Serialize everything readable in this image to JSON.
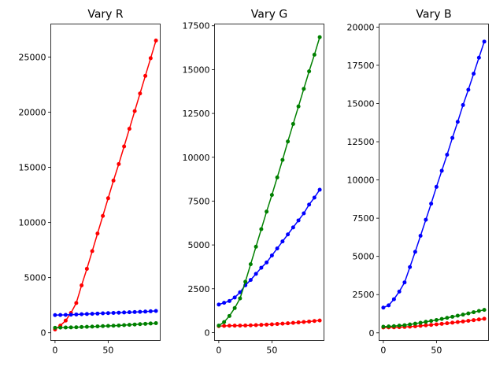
{
  "chart_data": [
    {
      "type": "line",
      "title": "Vary R",
      "xlabel": "",
      "ylabel": "",
      "xlim": [
        -4,
        99
      ],
      "ylim": [
        -700,
        28000
      ],
      "xticks": [
        0,
        50
      ],
      "xtick_labels": [
        "0",
        "50"
      ],
      "yticks": [
        0,
        5000,
        10000,
        15000,
        20000,
        25000
      ],
      "ytick_labels": [
        "0",
        "5000",
        "10000",
        "15000",
        "20000",
        "25000"
      ],
      "x": [
        0,
        5,
        10,
        15,
        20,
        25,
        30,
        35,
        40,
        45,
        50,
        55,
        60,
        65,
        70,
        75,
        80,
        85,
        90,
        95
      ],
      "series": [
        {
          "color": "#ff0000",
          "values": [
            300,
            650,
            1100,
            1800,
            2700,
            4300,
            5800,
            7400,
            9000,
            10600,
            12200,
            13800,
            15300,
            16900,
            18500,
            20100,
            21700,
            23300,
            24900,
            26500
          ]
        },
        {
          "color": "#0000ff",
          "values": [
            1600,
            1610,
            1620,
            1640,
            1660,
            1680,
            1700,
            1720,
            1740,
            1760,
            1780,
            1800,
            1820,
            1840,
            1860,
            1880,
            1900,
            1920,
            1950,
            1980
          ]
        },
        {
          "color": "#008000",
          "values": [
            450,
            470,
            480,
            490,
            500,
            520,
            540,
            560,
            580,
            600,
            620,
            640,
            660,
            690,
            720,
            750,
            780,
            810,
            840,
            870
          ]
        }
      ]
    },
    {
      "type": "line",
      "title": "Vary G",
      "xlabel": "",
      "ylabel": "",
      "xlim": [
        -4,
        99
      ],
      "ylim": [
        -450,
        17600
      ],
      "xticks": [
        0,
        50
      ],
      "xtick_labels": [
        "0",
        "50"
      ],
      "yticks": [
        0,
        2500,
        5000,
        7500,
        10000,
        12500,
        15000,
        17500
      ],
      "ytick_labels": [
        "0",
        "2500",
        "5000",
        "7500",
        "10000",
        "12500",
        "15000",
        "17500"
      ],
      "x": [
        0,
        5,
        10,
        15,
        20,
        25,
        30,
        35,
        40,
        45,
        50,
        55,
        60,
        65,
        70,
        75,
        80,
        85,
        90,
        95
      ],
      "series": [
        {
          "color": "#ff0000",
          "values": [
            370,
            380,
            390,
            395,
            400,
            405,
            415,
            425,
            440,
            455,
            470,
            490,
            510,
            530,
            555,
            580,
            605,
            630,
            660,
            690
          ]
        },
        {
          "color": "#0000ff",
          "values": [
            1600,
            1700,
            1800,
            2000,
            2300,
            2700,
            3000,
            3350,
            3700,
            4000,
            4400,
            4800,
            5200,
            5600,
            6000,
            6400,
            6800,
            7300,
            7700,
            8150
          ]
        },
        {
          "color": "#008000",
          "values": [
            400,
            600,
            950,
            1400,
            1950,
            2900,
            3900,
            4900,
            5900,
            6900,
            7850,
            8850,
            9850,
            10900,
            11900,
            12900,
            13900,
            14900,
            15850,
            16850
          ]
        }
      ]
    },
    {
      "type": "line",
      "title": "Vary B",
      "xlabel": "",
      "ylabel": "",
      "xlim": [
        -4,
        99
      ],
      "ylim": [
        -500,
        20200
      ],
      "xticks": [
        0,
        50
      ],
      "xtick_labels": [
        "0",
        "50"
      ],
      "yticks": [
        0,
        2500,
        5000,
        7500,
        10000,
        12500,
        15000,
        17500,
        20000
      ],
      "ytick_labels": [
        "0",
        "2500",
        "5000",
        "7500",
        "10000",
        "12500",
        "15000",
        "17500",
        "20000"
      ],
      "x": [
        0,
        5,
        10,
        15,
        20,
        25,
        30,
        35,
        40,
        45,
        50,
        55,
        60,
        65,
        70,
        75,
        80,
        85,
        90,
        95
      ],
      "series": [
        {
          "color": "#ff0000",
          "values": [
            350,
            355,
            360,
            370,
            385,
            405,
            430,
            460,
            490,
            520,
            555,
            590,
            625,
            665,
            705,
            745,
            785,
            830,
            875,
            920
          ]
        },
        {
          "color": "#008000",
          "values": [
            400,
            420,
            440,
            470,
            500,
            550,
            600,
            660,
            720,
            780,
            840,
            910,
            980,
            1050,
            1120,
            1190,
            1270,
            1350,
            1430,
            1500
          ]
        },
        {
          "color": "#0000ff",
          "values": [
            1650,
            1800,
            2200,
            2700,
            3300,
            4300,
            5300,
            6350,
            7400,
            8450,
            9550,
            10600,
            11650,
            12750,
            13800,
            14900,
            15900,
            16950,
            18000,
            19050
          ]
        }
      ]
    }
  ]
}
